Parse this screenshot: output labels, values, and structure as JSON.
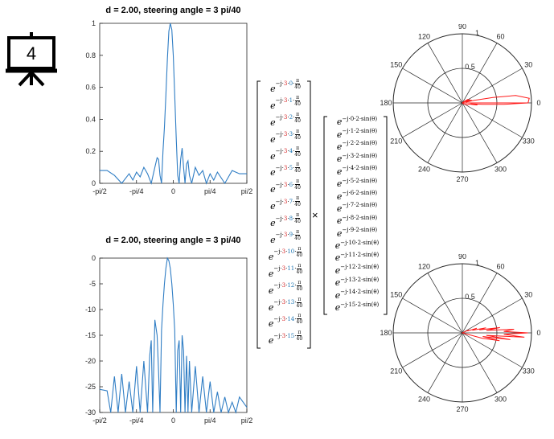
{
  "slide_number": "4",
  "matrix_operator": "×",
  "colors": {
    "line": "#2f7dc4",
    "polar_pattern": "#ff1a1a",
    "axis": "#262626",
    "grid": "#262626",
    "exponent_red": "#d62728",
    "exponent_blue": "#1f77b4"
  },
  "icons": {
    "slide_icon": "presentation-board-icon"
  },
  "matrix_left": {
    "steering_multiplier": "3",
    "indices": [
      "0",
      "1",
      "2",
      "3",
      "4",
      "5",
      "6",
      "7",
      "8",
      "9",
      "10",
      "11",
      "12",
      "13",
      "14",
      "15"
    ]
  },
  "matrix_right": {
    "spacing": "2",
    "indices": [
      "0",
      "1",
      "2",
      "3",
      "4",
      "5",
      "6",
      "7",
      "8",
      "9",
      "10",
      "11",
      "12",
      "13",
      "14",
      "15"
    ]
  },
  "chart_data": [
    {
      "type": "line",
      "title": "d = 2.00, steering angle  = 3 pi/40",
      "xlabel": "",
      "ylabel": "",
      "xlim": [
        -1.5708,
        1.5708
      ],
      "ylim": [
        0,
        1
      ],
      "xticks": [
        "-pi/2",
        "-pi/4",
        "0",
        "pi/4",
        "pi/2"
      ],
      "yticks": [
        "0",
        "0.2",
        "0.4",
        "0.6",
        "0.8",
        "1"
      ],
      "scale": "linear",
      "series": [
        {
          "x": [
            -1.5708,
            -1.4137,
            -1.2566,
            -1.0996,
            -0.9425,
            -0.8639,
            -0.7854,
            -0.7069,
            -0.6283,
            -0.5498,
            -0.4712,
            -0.3927,
            -0.3456,
            -0.3142,
            -0.2827,
            -0.2513,
            -0.2199,
            -0.1885,
            -0.1571,
            -0.1257,
            -0.0942,
            -0.0628,
            -0.0314,
            0.0,
            0.0314,
            0.0628,
            0.0942,
            0.1257,
            0.1571,
            0.1885,
            0.2199,
            0.2513,
            0.2827,
            0.3142,
            0.3456,
            0.3927,
            0.4712,
            0.5498,
            0.6283,
            0.7069,
            0.7854,
            0.8639,
            0.9425,
            1.0996,
            1.2566,
            1.4137,
            1.5708
          ],
          "y": [
            0.08,
            0.08,
            0.05,
            0.0,
            0.06,
            0.02,
            0.07,
            0.04,
            0.1,
            0.06,
            0.0,
            0.1,
            0.16,
            0.15,
            0.05,
            0.0,
            0.2,
            0.35,
            0.55,
            0.78,
            0.95,
            1.0,
            0.96,
            0.8,
            0.55,
            0.28,
            0.05,
            0.0,
            0.15,
            0.22,
            0.1,
            0.0,
            0.12,
            0.14,
            0.05,
            0.0,
            0.1,
            0.05,
            0.08,
            0.0,
            0.06,
            0.02,
            0.07,
            0.0,
            0.08,
            0.06,
            0.06
          ]
        }
      ]
    },
    {
      "type": "line",
      "title": "d = 2.00, steering angle  = 3 pi/40",
      "xlabel": "",
      "ylabel": "",
      "xlim": [
        -1.5708,
        1.5708
      ],
      "ylim": [
        -30,
        0
      ],
      "xticks": [
        "-pi/2",
        "-pi/4",
        "0",
        "pi/4",
        "pi/2"
      ],
      "yticks": [
        "-30",
        "-25",
        "-20",
        "-15",
        "-10",
        "-5",
        "0"
      ],
      "scale": "dB",
      "series": [
        {
          "x": [
            -1.5708,
            -1.4137,
            -1.3352,
            -1.2566,
            -1.1781,
            -1.0996,
            -1.021,
            -0.9425,
            -0.8639,
            -0.7854,
            -0.7069,
            -0.6283,
            -0.5498,
            -0.5027,
            -0.4712,
            -0.4398,
            -0.3927,
            -0.3456,
            -0.3142,
            -0.2827,
            -0.2513,
            -0.2199,
            -0.1885,
            -0.1571,
            -0.1257,
            -0.0942,
            -0.0628,
            -0.0314,
            0.0,
            0.0314,
            0.0628,
            0.0942,
            0.1257,
            0.1571,
            0.1885,
            0.2199,
            0.2513,
            0.2827,
            0.3142,
            0.3456,
            0.3927,
            0.4712,
            0.5498,
            0.6283,
            0.7069,
            0.7854,
            0.8639,
            0.9425,
            1.021,
            1.0996,
            1.1781,
            1.2566,
            1.3352,
            1.4137,
            1.5708
          ],
          "y": [
            -25.5,
            -25.8,
            -30,
            -23,
            -30,
            -22.5,
            -30,
            -24,
            -30,
            -21,
            -30,
            -20,
            -30,
            -19,
            -16,
            -30,
            -12,
            -15,
            -22,
            -30,
            -14,
            -9,
            -5,
            -2,
            0,
            -0.5,
            -2,
            -5,
            -9,
            -14,
            -30,
            -18,
            -16,
            -30,
            -15,
            -18,
            -30,
            -19,
            -30,
            -20,
            -30,
            -21,
            -30,
            -23,
            -30,
            -24,
            -30,
            -26,
            -30,
            -27,
            -30,
            -28,
            -30,
            -27,
            -29
          ]
        }
      ]
    },
    {
      "type": "polar",
      "angle_ticks": [
        "0",
        "30",
        "60",
        "90",
        "120",
        "150",
        "180",
        "210",
        "240",
        "270",
        "300",
        "330"
      ],
      "radial_ticks": [
        "0.5",
        "1"
      ],
      "rlim": [
        0,
        1
      ],
      "series": [
        {
          "theta_deg": [
            0,
            4,
            8,
            10,
            12,
            14,
            17,
            20,
            24,
            28,
            32,
            40,
            180,
            200,
            220,
            320,
            340,
            350,
            352,
            354,
            356,
            358,
            360
          ],
          "r": [
            0.95,
            0.97,
            0.78,
            0.45,
            0.18,
            0.05,
            0.14,
            0.05,
            0.12,
            0.02,
            0.1,
            0.03,
            0.0,
            0.0,
            0.0,
            0.02,
            0.08,
            0.1,
            0.22,
            0.12,
            0.3,
            0.6,
            0.95
          ]
        }
      ]
    },
    {
      "type": "polar",
      "angle_ticks": [
        "0",
        "30",
        "60",
        "90",
        "120",
        "150",
        "180",
        "210",
        "240",
        "270",
        "300",
        "330"
      ],
      "radial_ticks": [
        "0.5",
        "1"
      ],
      "rlim": [
        0,
        1
      ],
      "series": [
        {
          "theta_deg": [
            -15,
            -12,
            -10,
            -8,
            -6,
            -4,
            -2,
            0,
            2,
            4,
            6,
            8,
            10,
            12,
            15,
            18,
            20,
            25
          ],
          "r": [
            0.3,
            0.55,
            0.3,
            0.7,
            0.35,
            0.9,
            0.6,
            0.95,
            0.6,
            0.75,
            0.35,
            0.55,
            0.25,
            0.35,
            0.15,
            0.22,
            0.08,
            0.1
          ]
        }
      ]
    }
  ]
}
